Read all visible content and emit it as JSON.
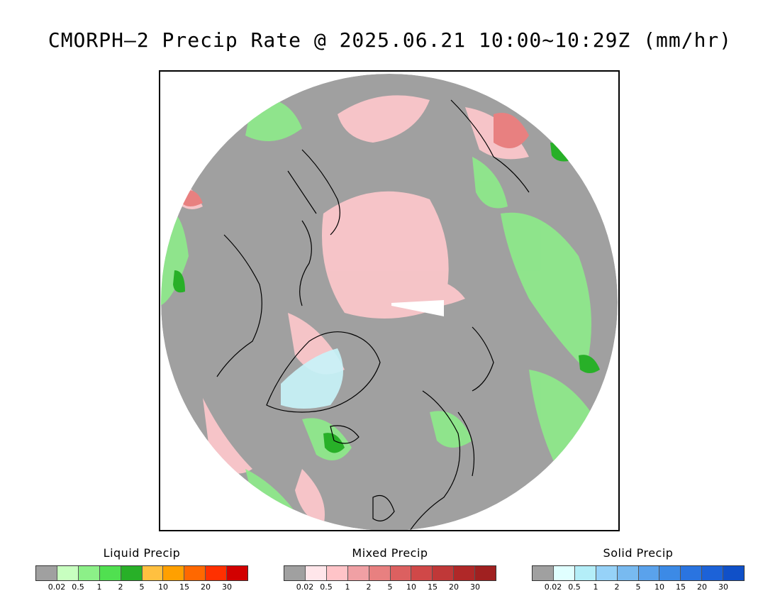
{
  "title": "CMORPH–2 Precip Rate @ 2025.06.21 10:00~10:29Z (mm/hr)",
  "legends": [
    {
      "id": "liquid",
      "title": "Liquid Precip",
      "colors": [
        "#a0a0a0",
        "#c8ffc0",
        "#8cf088",
        "#50e050",
        "#28b028",
        "#ffc040",
        "#ffa000",
        "#ff6800",
        "#ff3000",
        "#d20000"
      ],
      "ticks": [
        "0.02",
        "0.5",
        "1",
        "2",
        "5",
        "10",
        "15",
        "20",
        "30"
      ]
    },
    {
      "id": "mixed",
      "title": "Mixed Precip",
      "colors": [
        "#a0a0a0",
        "#ffe6ea",
        "#ffc4c8",
        "#f0a0a4",
        "#e88080",
        "#dc6060",
        "#d04848",
        "#c03838",
        "#b02828",
        "#a02020"
      ],
      "ticks": [
        "0.02",
        "0.5",
        "1",
        "2",
        "5",
        "10",
        "15",
        "20",
        "30"
      ]
    },
    {
      "id": "solid",
      "title": "Solid Precip",
      "colors": [
        "#a0a0a0",
        "#e0ffff",
        "#b4eef8",
        "#96d2f8",
        "#78baf0",
        "#5aa2ec",
        "#3c8ae6",
        "#2a74e0",
        "#1c62d8",
        "#1050c8"
      ],
      "ticks": [
        "0.02",
        "0.5",
        "1",
        "2",
        "5",
        "10",
        "15",
        "20",
        "30"
      ]
    }
  ],
  "map": {
    "projection": "north-polar-stereographic",
    "background_no_precip": "#a0a0a0"
  }
}
